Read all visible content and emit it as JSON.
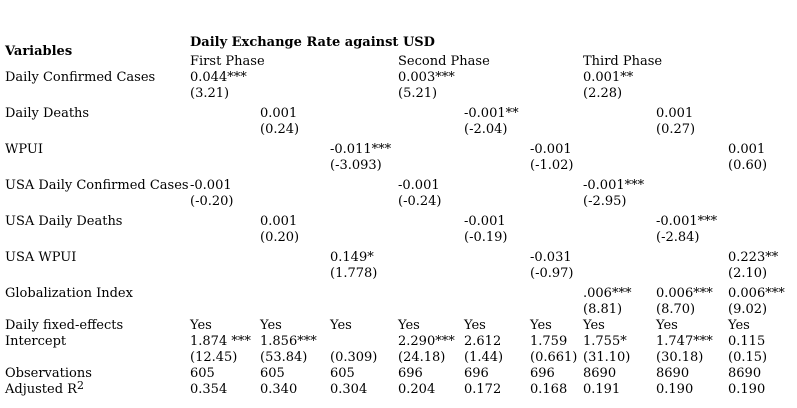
{
  "document": {
    "title": "Daily Exchange Rate against USD",
    "variables_header": "Variables",
    "phases": [
      {
        "label": "First Phase"
      },
      {
        "label": "Second Phase"
      },
      {
        "label": "Third Phase"
      }
    ],
    "rows": [
      {
        "type": "coef",
        "label": "Daily Confirmed Cases",
        "cells": [
          {
            "coef": "0.044***",
            "t": "(3.21)"
          },
          {},
          {},
          {
            "coef": "0.003***",
            "t": "(5.21)"
          },
          {},
          {},
          {
            "coef": "0.001**",
            "t": "(2.28)"
          },
          {},
          {}
        ]
      },
      {
        "type": "coef",
        "label": "Daily Deaths",
        "cells": [
          {},
          {
            "coef": "0.001",
            "t": "(0.24)"
          },
          {},
          {},
          {
            "coef": "-0.001**",
            "t": "(-2.04)"
          },
          {},
          {},
          {
            "coef": "0.001",
            "t": "(0.27)"
          },
          {}
        ]
      },
      {
        "type": "coef",
        "label": "WPUI",
        "cells": [
          {},
          {},
          {
            "coef": "-0.011***",
            "t": "(-3.093)"
          },
          {},
          {},
          {
            "coef": "-0.001",
            "t": "(-1.02)"
          },
          {},
          {},
          {
            "coef": "0.001",
            "t": "(0.60)"
          }
        ]
      },
      {
        "type": "coef",
        "label": "USA Daily Confirmed Cases",
        "cells": [
          {
            "coef": "-0.001",
            "t": "(-0.20)"
          },
          {},
          {},
          {
            "coef": "-0.001",
            "t": "(-0.24)"
          },
          {},
          {},
          {
            "coef": "-0.001***",
            "t": "(-2.95)"
          },
          {},
          {}
        ]
      },
      {
        "type": "coef",
        "label": "USA Daily Deaths",
        "cells": [
          {},
          {
            "coef": "0.001",
            "t": "(0.20)"
          },
          {},
          {},
          {
            "coef": "-0.001",
            "t": "(-0.19)"
          },
          {},
          {},
          {
            "coef": "-0.001***",
            "t": "(-2.84)"
          },
          {}
        ]
      },
      {
        "type": "coef",
        "label": "USA WPUI",
        "cells": [
          {},
          {},
          {
            "coef": "0.149*",
            "t": "(1.778)"
          },
          {},
          {},
          {
            "coef": "-0.031",
            "t": "(-0.97)"
          },
          {},
          {},
          {
            "coef": "0.223**",
            "t": "(2.10)"
          }
        ]
      },
      {
        "type": "coef",
        "label": "Globalization Index",
        "cells": [
          {},
          {},
          {},
          {},
          {},
          {},
          {
            "coef": ".006***",
            "t": "(8.81)"
          },
          {
            "coef": "0.006***",
            "t": "(8.70)"
          },
          {
            "coef": "0.006***",
            "t": "(9.02)"
          }
        ]
      },
      {
        "type": "single",
        "label": "Daily fixed-effects",
        "values": [
          "Yes",
          "Yes",
          "Yes",
          "Yes",
          "Yes",
          "Yes",
          "Yes",
          "Yes",
          "Yes"
        ]
      },
      {
        "type": "coef",
        "label": "Intercept",
        "cells": [
          {
            "coef": "1.874 ***",
            "t": "(12.45)"
          },
          {
            "coef": "1.856***",
            "t": "(53.84)"
          },
          {
            "coef": "",
            "t": "(0.309)"
          },
          {
            "coef": "2.290***",
            "t": "(24.18)"
          },
          {
            "coef": "2.612",
            "t": "(1.44)"
          },
          {
            "coef": "1.759",
            "t": "(0.661)"
          },
          {
            "coef": "1.755*",
            "t": "(31.10)"
          },
          {
            "coef": "1.747***",
            "t": "(30.18)"
          },
          {
            "coef": "0.115",
            "t": "(0.15)"
          }
        ]
      },
      {
        "type": "single",
        "label": "Observations",
        "values": [
          "605",
          "605",
          "605",
          "696",
          "696",
          "696",
          "8690",
          "8690",
          "8690"
        ]
      },
      {
        "type": "single",
        "label": "Adjusted R",
        "label_sup": "2",
        "values": [
          "0.354",
          "0.340",
          "0.304",
          "0.204",
          "0.172",
          "0.168",
          "0.191",
          "0.190",
          "0.190"
        ]
      }
    ]
  }
}
